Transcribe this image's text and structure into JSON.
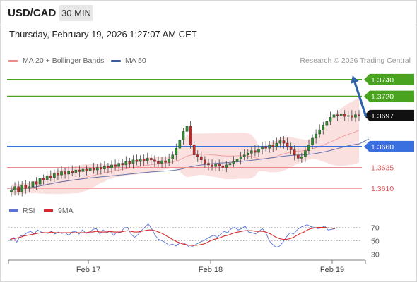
{
  "header": {
    "pair": "USD/CAD",
    "timeframe": "30 MIN",
    "datetime": "Thursday, February 19, 2026 1:27:07 AM CET",
    "credit": "Research © 2026 Trading Central"
  },
  "colors": {
    "green": "#4aa31e",
    "blue": "#3a6fe0",
    "red": "#f08a8a",
    "ma50": "#3e5a9e",
    "bb": "#f7c6c6",
    "arrow": "#2f62a8",
    "rsi": "#5a73d6",
    "rsi_ma": "#d42a2a"
  },
  "chart_data": [
    {
      "type": "candlestick",
      "title": "",
      "legend": [
        {
          "name": "MA 20 + Bollinger Bands",
          "color": "#f08a8a"
        },
        {
          "name": "MA 50",
          "color": "#3e5a9e"
        }
      ],
      "legend_position": "top-left",
      "x_ticks": [
        "Feb 17",
        "Feb 18",
        "Feb 19"
      ],
      "ylim": [
        1.3595,
        1.3755
      ],
      "last_price": "1.3697",
      "levels": [
        {
          "value": 1.374,
          "label": "1.3740",
          "kind": "resistance",
          "color": "#4aa31e"
        },
        {
          "value": 1.372,
          "label": "1.3720",
          "kind": "resistance",
          "color": "#4aa31e"
        },
        {
          "value": 1.366,
          "label": "1.3660",
          "kind": "pivot",
          "color": "#3a6fe0"
        },
        {
          "value": 1.3635,
          "label": "1.3635",
          "kind": "support",
          "color": "#f08a8a"
        },
        {
          "value": 1.361,
          "label": "1.3610",
          "kind": "support",
          "color": "#f08a8a"
        }
      ],
      "arrow": {
        "from": 1.3697,
        "to": 1.374,
        "direction": "up"
      },
      "closes": [
        1.3608,
        1.3612,
        1.3606,
        1.3614,
        1.361,
        1.3612,
        1.3618,
        1.3615,
        1.3622,
        1.362,
        1.3625,
        1.3623,
        1.3628,
        1.3626,
        1.363,
        1.3627,
        1.3631,
        1.3629,
        1.3632,
        1.363,
        1.3633,
        1.3631,
        1.3634,
        1.3632,
        1.3635,
        1.3633,
        1.3636,
        1.3634,
        1.3638,
        1.3636,
        1.364,
        1.3638,
        1.3642,
        1.364,
        1.3644,
        1.3642,
        1.3645,
        1.3643,
        1.3646,
        1.3644,
        1.3642,
        1.364,
        1.3643,
        1.3641,
        1.3645,
        1.365,
        1.3658,
        1.3668,
        1.3678,
        1.3684,
        1.3662,
        1.365,
        1.3648,
        1.3644,
        1.364,
        1.3638,
        1.3636,
        1.3639,
        1.3637,
        1.3635,
        1.3638,
        1.364,
        1.3642,
        1.3645,
        1.3648,
        1.365,
        1.3652,
        1.3655,
        1.3653,
        1.3657,
        1.366,
        1.3658,
        1.3662,
        1.366,
        1.3664,
        1.3667,
        1.3664,
        1.366,
        1.3656,
        1.365,
        1.3646,
        1.3648,
        1.3655,
        1.3662,
        1.367,
        1.3675,
        1.368,
        1.3685,
        1.369,
        1.3695,
        1.3698,
        1.3697,
        1.3699,
        1.3696,
        1.3697,
        1.3695,
        1.3698,
        1.3697
      ]
    },
    {
      "type": "line",
      "title": "",
      "legend": [
        {
          "name": "RSI",
          "color": "#5a73d6"
        },
        {
          "name": "9MA",
          "color": "#d42a2a"
        }
      ],
      "legend_position": "top-left",
      "ylim": [
        25,
        80
      ],
      "y_ticks": [
        70,
        50,
        30
      ],
      "series": [
        {
          "name": "RSI",
          "values": [
            50,
            55,
            48,
            57,
            58,
            62,
            64,
            60,
            66,
            63,
            62,
            61,
            64,
            60,
            63,
            61,
            62,
            58,
            63,
            64,
            60,
            66,
            61,
            62,
            67,
            68,
            60,
            66,
            62,
            64,
            58,
            63,
            62,
            69,
            70,
            60,
            55,
            59,
            65,
            70,
            75,
            68,
            58,
            52,
            50,
            47,
            43,
            45,
            42,
            46,
            47,
            44,
            40,
            42,
            45,
            48,
            50,
            53,
            56,
            58,
            55,
            60,
            64,
            62,
            68,
            70,
            66,
            68,
            72,
            63,
            62,
            60,
            64,
            68,
            62,
            50,
            44,
            40,
            42,
            48,
            56,
            62,
            60,
            66,
            70,
            72,
            74,
            71,
            70,
            68,
            69,
            72,
            66,
            67,
            68
          ]
        },
        {
          "name": "9MA",
          "values": [
            52,
            53,
            54,
            55,
            57,
            58,
            59,
            60,
            61,
            62,
            62,
            62,
            63,
            62,
            62,
            62,
            62,
            62,
            62,
            62,
            62,
            62,
            62,
            63,
            63,
            64,
            63,
            63,
            63,
            64,
            63,
            63,
            63,
            64,
            65,
            64,
            63,
            63,
            64,
            65,
            66,
            66,
            65,
            63,
            61,
            58,
            55,
            52,
            49,
            47,
            45,
            44,
            43,
            43,
            43,
            44,
            45,
            47,
            50,
            52,
            53,
            55,
            57,
            58,
            60,
            62,
            63,
            64,
            65,
            65,
            65,
            64,
            64,
            64,
            63,
            61,
            58,
            55,
            53,
            52,
            52,
            53,
            55,
            58,
            61,
            63,
            66,
            68,
            69,
            70,
            70,
            70,
            69,
            69,
            68
          ]
        }
      ]
    }
  ]
}
